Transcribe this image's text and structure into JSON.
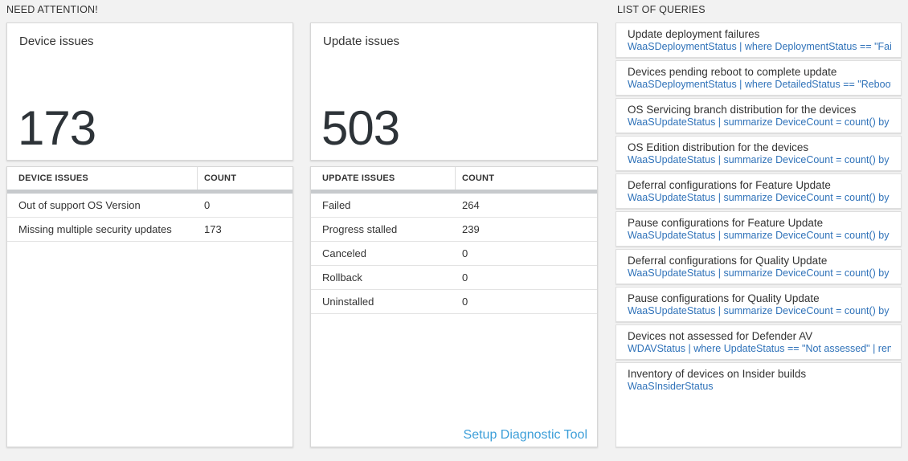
{
  "sections": {
    "need_attention": "NEED ATTENTION!",
    "list_of_queries": "LIST OF QUERIES"
  },
  "device_issues": {
    "title": "Device issues",
    "total": "173",
    "table": {
      "headers": [
        "DEVICE ISSUES",
        "COUNT"
      ],
      "rows": [
        {
          "label": "Out of support OS Version",
          "count": "0"
        },
        {
          "label": "Missing multiple security updates",
          "count": "173"
        }
      ]
    }
  },
  "update_issues": {
    "title": "Update issues",
    "total": "503",
    "table": {
      "headers": [
        "UPDATE ISSUES",
        "COUNT"
      ],
      "rows": [
        {
          "label": "Failed",
          "count": "264"
        },
        {
          "label": "Progress stalled",
          "count": "239"
        },
        {
          "label": "Canceled",
          "count": "0"
        },
        {
          "label": "Rollback",
          "count": "0"
        },
        {
          "label": "Uninstalled",
          "count": "0"
        }
      ]
    },
    "footer_link": "Setup Diagnostic Tool"
  },
  "queries": [
    {
      "title": "Update deployment failures",
      "query": "WaaSDeploymentStatus | where DeploymentStatus == \"Failed\" |..."
    },
    {
      "title": "Devices pending reboot to complete update",
      "query": "WaaSDeploymentStatus | where DetailedStatus == \"Reboot pend..."
    },
    {
      "title": "OS Servicing branch distribution for the devices",
      "query": "WaaSUpdateStatus | summarize DeviceCount = count() by OSSer..."
    },
    {
      "title": "OS Edition distribution for the devices",
      "query": "WaaSUpdateStatus | summarize DeviceCount = count() by OSEdit..."
    },
    {
      "title": "Deferral configurations for Feature Update",
      "query": "WaaSUpdateStatus | summarize DeviceCount = count() by Featur..."
    },
    {
      "title": "Pause configurations for Feature Update",
      "query": "WaaSUpdateStatus | summarize DeviceCount = count() by Featur..."
    },
    {
      "title": "Deferral configurations for Quality Update",
      "query": "WaaSUpdateStatus | summarize DeviceCount = count() by Qualit..."
    },
    {
      "title": "Pause configurations for Quality Update",
      "query": "WaaSUpdateStatus | summarize DeviceCount = count() by Qualit..."
    },
    {
      "title": "Devices not assessed for Defender AV",
      "query": "WDAVStatus | where UpdateStatus == \"Not assessed\" | render ta..."
    },
    {
      "title": "Inventory of devices on Insider builds",
      "query": "WaaSInsiderStatus"
    }
  ],
  "colors": {
    "page_background": "#f2f2f2",
    "query_link_blue": "#2f72b9",
    "setup_link_blue": "#3d9fd9",
    "big_number": "#2d3338",
    "table_divider_bar": "#c7cacd"
  }
}
